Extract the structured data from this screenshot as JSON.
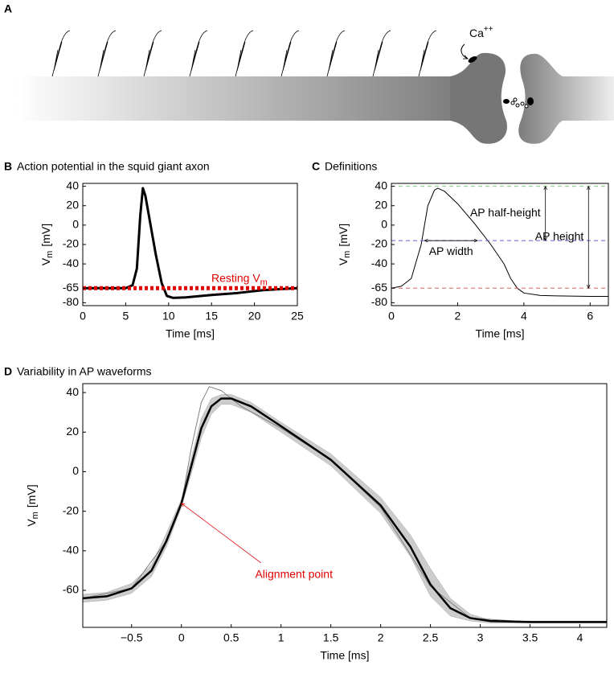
{
  "diagram": {
    "label": "A",
    "ion": "Ca",
    "ion_charge": "++"
  },
  "chart_data": [
    {
      "type": "line",
      "label": "B",
      "title": "Action potential in the squid giant axon",
      "x_label": "Time [ms]",
      "y_label": {
        "text": "V",
        "sub": "m",
        "unit": "[mV]"
      },
      "xlim": [
        0,
        25
      ],
      "xticks": [
        0,
        5,
        10,
        15,
        20,
        25
      ],
      "ylim": [
        -83,
        43
      ],
      "yticks": [
        -80,
        -65,
        -40,
        -20,
        0,
        20,
        40
      ],
      "series": [
        {
          "color": "#000000",
          "width": 3,
          "x": [
            0,
            5,
            5.8,
            6.3,
            6.7,
            7,
            7.3,
            7.8,
            8.5,
            9.2,
            9.8,
            10.5,
            12,
            15,
            18,
            21,
            25
          ],
          "values": [
            -65,
            -65,
            -62,
            -45,
            10,
            38,
            30,
            5,
            -30,
            -60,
            -73,
            -75,
            -74.5,
            -72,
            -70,
            -67,
            -65
          ]
        }
      ],
      "hlines": [
        {
          "value": -65,
          "color": "#e00000",
          "style": "dotted",
          "label": {
            "text": "Resting V",
            "sub": "m"
          }
        }
      ]
    },
    {
      "type": "line",
      "label": "C",
      "title": "Definitions",
      "x_label": "Time [ms]",
      "y_label": {
        "text": "V",
        "sub": "m",
        "unit": "[mV]"
      },
      "xlim": [
        0,
        6.55
      ],
      "xticks": [
        0,
        2,
        4,
        6
      ],
      "ylim": [
        -83,
        43
      ],
      "yticks": [
        -80,
        -65,
        -40,
        -20,
        0,
        20,
        40
      ],
      "series": [
        {
          "color": "#000000",
          "width": 1,
          "x": [
            0,
            0.3,
            0.6,
            0.9,
            1.1,
            1.3,
            1.4,
            1.6,
            2,
            2.5,
            3,
            3.4,
            3.6,
            3.8,
            4,
            4.5,
            5,
            6,
            6.55
          ],
          "values": [
            -65,
            -63,
            -55,
            -20,
            20,
            36,
            38,
            35,
            22,
            2,
            -20,
            -40,
            -55,
            -65,
            -70,
            -72.5,
            -73,
            -73.5,
            -73.5
          ]
        }
      ],
      "hlines": [
        {
          "value": 40,
          "color": "#7ccc7c",
          "style": "dashed"
        },
        {
          "value": -16,
          "color": "#6060d0",
          "style": "dashed"
        },
        {
          "value": -65,
          "color": "#e06060",
          "style": "dashed"
        }
      ],
      "annotations": [
        {
          "text": "AP width",
          "from": [
            1.0,
            -16
          ],
          "to": [
            2.6,
            -16
          ],
          "label_side": "below"
        },
        {
          "text": "AP half-height",
          "from": [
            4.65,
            40
          ],
          "to": [
            4.65,
            -16
          ],
          "label_side": "left"
        },
        {
          "text": "AP height",
          "from": [
            5.95,
            40
          ],
          "to": [
            5.95,
            -65
          ],
          "label_side": "left"
        }
      ]
    },
    {
      "type": "line",
      "label": "D",
      "title": "Variability in AP waveforms",
      "x_label": "Time [ms]",
      "y_label": {
        "text": "V",
        "sub": "m",
        "unit": "[mV]"
      },
      "xlim": [
        -0.99,
        4.27
      ],
      "xticks": [
        {
          "value": -0.5,
          "label": "−0.5"
        },
        0,
        0.5,
        1,
        1.5,
        2,
        2.5,
        3,
        3.5,
        4
      ],
      "ylim": [
        -78.7,
        44.5
      ],
      "yticks": [
        -60,
        -40,
        -20,
        0,
        20,
        40
      ],
      "band": {
        "color": "#cccccc",
        "x": [
          -0.99,
          -0.75,
          -0.5,
          -0.3,
          -0.15,
          0,
          0.1,
          0.2,
          0.3,
          0.4,
          0.5,
          0.7,
          1,
          1.5,
          2,
          2.3,
          2.5,
          2.7,
          2.9,
          3.1,
          3.5,
          4,
          4.27
        ],
        "upper": [
          -62,
          -61,
          -56.5,
          -47,
          -31,
          -14,
          7,
          27,
          37,
          39,
          39,
          35,
          25,
          9,
          -13,
          -32,
          -49,
          -64,
          -72,
          -75,
          -75.5,
          -75.5,
          -75.5
        ],
        "lower": [
          -66,
          -65,
          -61.5,
          -53,
          -38,
          -18,
          -1,
          17,
          29,
          34,
          34,
          30,
          20,
          3,
          -21,
          -43,
          -63,
          -73,
          -75.5,
          -76.5,
          -76.5,
          -76.5,
          -76.5
        ]
      },
      "series": [
        {
          "color": "#808080",
          "width": 1,
          "x": [
            -0.99,
            -0.5,
            -0.15,
            0,
            0.1,
            0.2,
            0.28,
            0.4,
            0.6,
            1,
            1.5,
            2,
            2.5,
            2.9,
            3.5,
            4.27
          ],
          "values": [
            -64,
            -59,
            -35,
            -16,
            12,
            35,
            43,
            41,
            33,
            22,
            6,
            -18,
            -58,
            -74,
            -76,
            -76
          ]
        },
        {
          "color": "#000000",
          "width": 2.5,
          "x": [
            -0.99,
            -0.75,
            -0.5,
            -0.3,
            -0.15,
            0,
            0.1,
            0.2,
            0.3,
            0.4,
            0.5,
            0.7,
            1,
            1.5,
            2,
            2.3,
            2.5,
            2.7,
            2.9,
            3.1,
            3.5,
            4,
            4.27
          ],
          "values": [
            -64,
            -63,
            -59,
            -50,
            -35,
            -16,
            3,
            22,
            33,
            37,
            37,
            33,
            23,
            6,
            -17,
            -38,
            -57,
            -69,
            -74,
            -75.5,
            -76,
            -76,
            -76
          ]
        }
      ],
      "pointer": {
        "text": "Alignment point",
        "point": [
          0,
          -16
        ],
        "color": "#e00000"
      }
    }
  ]
}
